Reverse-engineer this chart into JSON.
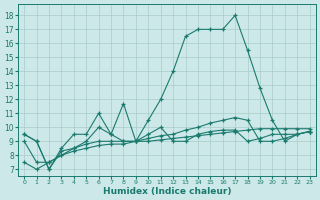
{
  "title": "",
  "xlabel": "Humidex (Indice chaleur)",
  "ylabel": "",
  "bg_color": "#cde8e8",
  "line_color": "#1a7a6e",
  "grid_color": "#aacccc",
  "x_ticks": [
    0,
    1,
    2,
    3,
    4,
    5,
    6,
    7,
    8,
    9,
    10,
    11,
    12,
    13,
    14,
    15,
    16,
    17,
    18,
    19,
    20,
    21,
    22,
    23
  ],
  "y_ticks": [
    7,
    8,
    9,
    10,
    11,
    12,
    13,
    14,
    15,
    16,
    17,
    18
  ],
  "ylim": [
    6.5,
    18.8
  ],
  "xlim": [
    -0.5,
    23.5
  ],
  "series": [
    {
      "x": [
        0,
        1,
        2,
        3,
        4,
        5,
        6,
        7,
        8,
        9,
        10,
        11,
        12,
        13,
        14,
        15,
        16,
        17,
        18,
        19,
        20,
        21,
        22,
        23
      ],
      "y": [
        9.5,
        9.0,
        7.0,
        8.5,
        9.5,
        9.5,
        11.0,
        9.5,
        11.7,
        9.0,
        9.5,
        10.0,
        9.0,
        9.0,
        9.5,
        9.7,
        9.8,
        9.8,
        9.0,
        9.2,
        9.5,
        9.5,
        9.5,
        9.7
      ]
    },
    {
      "x": [
        0,
        1,
        2,
        3,
        4,
        5,
        6,
        7,
        8,
        9,
        10,
        11,
        12,
        13,
        14,
        15,
        16,
        17,
        18,
        19,
        20,
        21,
        22,
        23
      ],
      "y": [
        7.5,
        7.0,
        7.5,
        8.0,
        8.3,
        8.5,
        8.7,
        8.8,
        8.8,
        9.0,
        9.0,
        9.1,
        9.2,
        9.3,
        9.4,
        9.5,
        9.6,
        9.7,
        9.8,
        9.9,
        9.9,
        9.9,
        9.9,
        9.9
      ]
    },
    {
      "x": [
        0,
        1,
        2,
        3,
        4,
        5,
        6,
        7,
        8,
        9,
        10,
        11,
        12,
        13,
        14,
        15,
        16,
        17,
        18,
        19,
        20,
        21,
        22,
        23
      ],
      "y": [
        9.0,
        7.5,
        7.5,
        8.0,
        8.5,
        8.8,
        9.0,
        9.0,
        9.0,
        9.0,
        9.2,
        9.4,
        9.5,
        9.8,
        10.0,
        10.3,
        10.5,
        10.7,
        10.5,
        9.0,
        9.0,
        9.2,
        9.5,
        9.7
      ]
    },
    {
      "x": [
        0,
        1,
        2,
        3,
        4,
        5,
        6,
        7,
        8,
        9,
        10,
        11,
        12,
        13,
        14,
        15,
        16,
        17,
        18,
        19,
        20,
        21,
        22,
        23
      ],
      "y": [
        9.5,
        9.0,
        7.0,
        8.3,
        8.5,
        9.0,
        10.0,
        9.5,
        9.0,
        9.0,
        10.5,
        12.0,
        14.0,
        16.5,
        17.0,
        17.0,
        17.0,
        18.0,
        15.5,
        12.8,
        10.5,
        9.0,
        9.5,
        9.7
      ]
    }
  ]
}
